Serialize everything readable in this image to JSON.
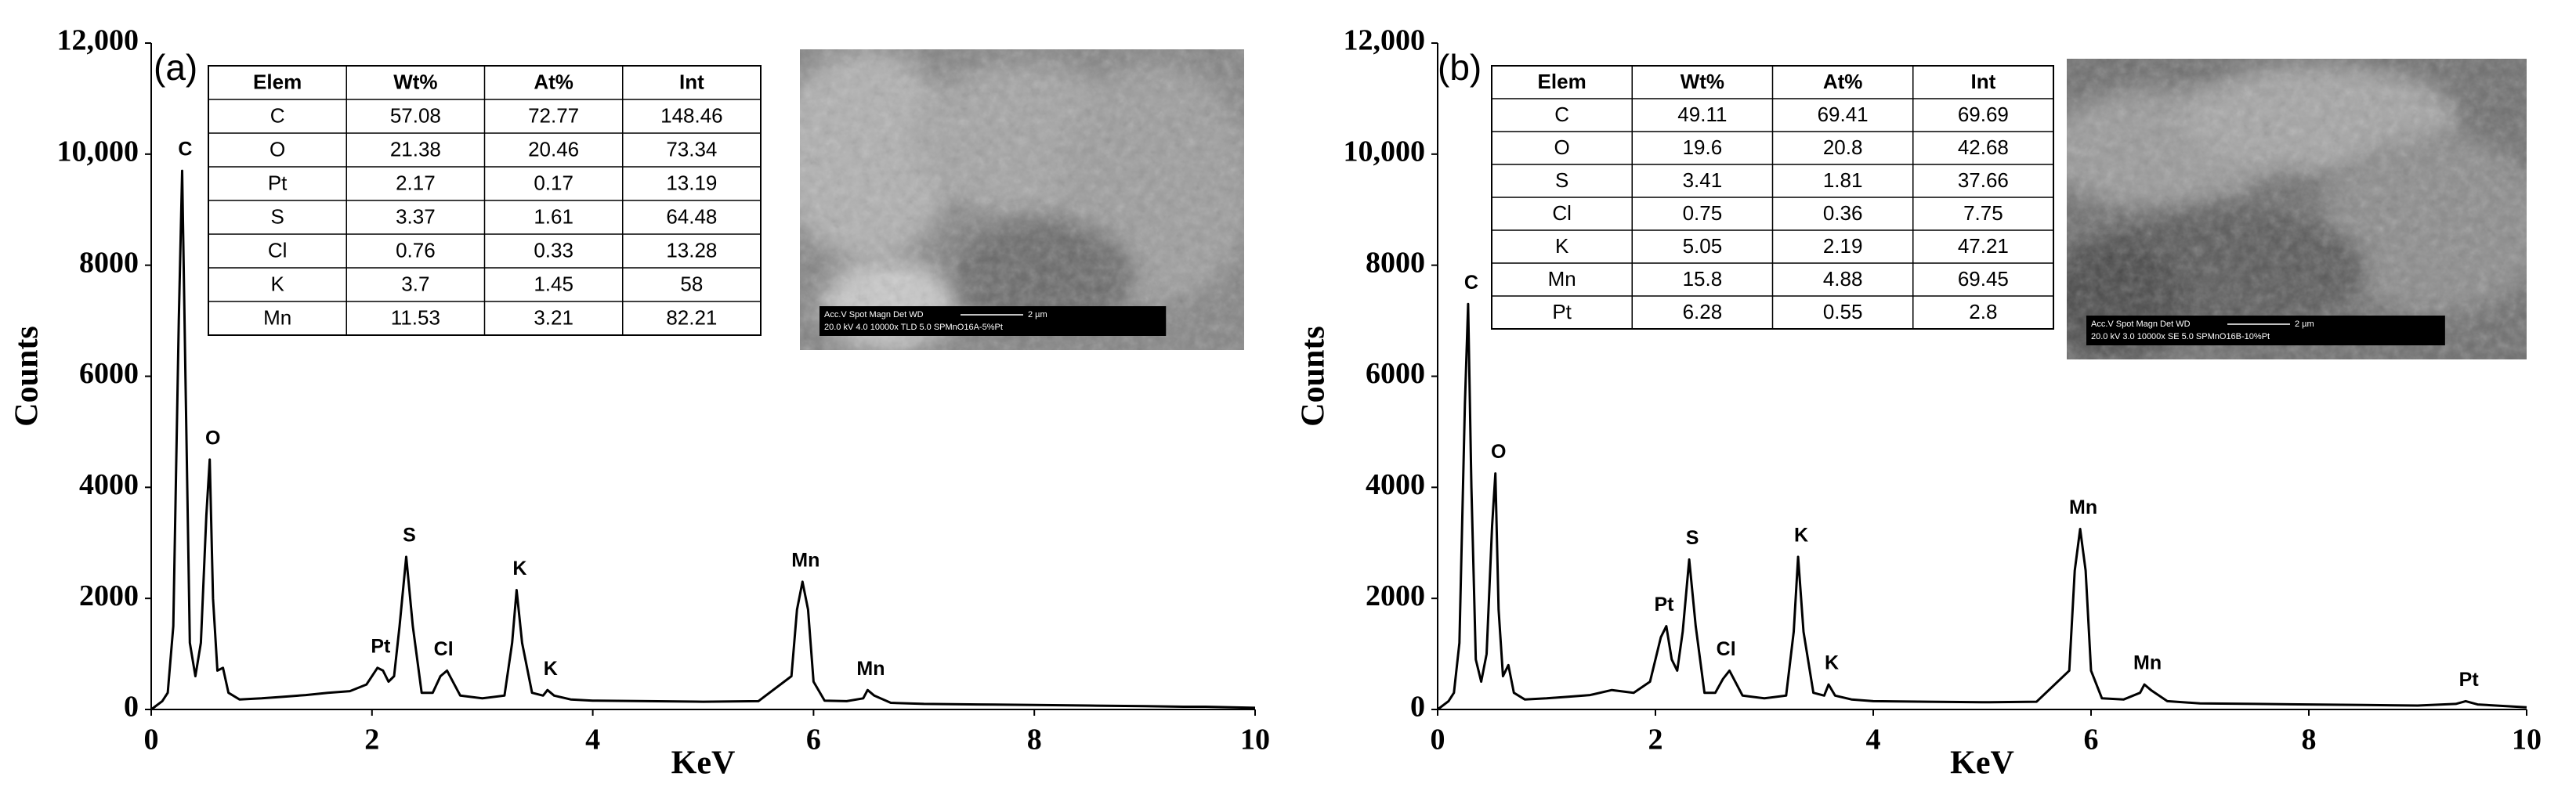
{
  "chart_data": [
    {
      "type": "line",
      "panel_label": "(a)",
      "x_label": "KeV",
      "y_label": "Counts",
      "color": "#000000",
      "xlim": [
        0,
        10
      ],
      "xticks": [
        0,
        2,
        4,
        6,
        8,
        10
      ],
      "ylim": [
        0,
        12000
      ],
      "yticks": [
        {
          "value": 12000,
          "label": "12,000"
        },
        {
          "value": 10000,
          "label": "10,000"
        },
        8000,
        6000,
        4000,
        2000,
        0
      ],
      "x": [
        0,
        0.1,
        0.15,
        0.2,
        0.25,
        0.28,
        0.31,
        0.35,
        0.4,
        0.45,
        0.5,
        0.53,
        0.56,
        0.6,
        0.65,
        0.7,
        0.8,
        1.0,
        1.2,
        1.4,
        1.6,
        1.8,
        1.95,
        2.05,
        2.1,
        2.15,
        2.2,
        2.25,
        2.31,
        2.37,
        2.45,
        2.55,
        2.62,
        2.68,
        2.8,
        3.0,
        3.2,
        3.27,
        3.31,
        3.36,
        3.45,
        3.55,
        3.59,
        3.65,
        3.8,
        4.0,
        4.5,
        5.0,
        5.5,
        5.8,
        5.85,
        5.9,
        5.95,
        6.0,
        6.1,
        6.3,
        6.45,
        6.49,
        6.55,
        6.7,
        7.0,
        7.5,
        8.0,
        8.5,
        9.0,
        9.35,
        9.44,
        9.55,
        10.0
      ],
      "values": [
        0,
        150,
        300,
        1500,
        7000,
        9700,
        6000,
        1200,
        600,
        1200,
        3500,
        4500,
        2000,
        700,
        750,
        300,
        180,
        200,
        230,
        260,
        300,
        330,
        450,
        750,
        700,
        500,
        600,
        1500,
        2750,
        1500,
        300,
        300,
        600,
        700,
        250,
        200,
        250,
        1200,
        2150,
        1200,
        300,
        250,
        350,
        250,
        180,
        160,
        150,
        140,
        150,
        600,
        1800,
        2300,
        1800,
        500,
        160,
        150,
        200,
        350,
        250,
        120,
        100,
        90,
        80,
        70,
        60,
        50,
        50,
        50,
        30
      ],
      "annotations": [
        {
          "text": "C",
          "x": 0.28,
          "y": 9700
        },
        {
          "text": "O",
          "x": 0.53,
          "y": 4500
        },
        {
          "text": "Pt",
          "x": 2.05,
          "y": 750
        },
        {
          "text": "S",
          "x": 2.31,
          "y": 2750
        },
        {
          "text": "Cl",
          "x": 2.62,
          "y": 700
        },
        {
          "text": "K",
          "x": 3.31,
          "y": 2150
        },
        {
          "text": "K",
          "x": 3.59,
          "y": 350
        },
        {
          "text": "Mn",
          "x": 5.9,
          "y": 2300
        },
        {
          "text": "Mn",
          "x": 6.49,
          "y": 350
        }
      ],
      "table": {
        "header": [
          "Elem",
          "Wt%",
          "At%",
          "Int"
        ],
        "rows": [
          [
            "C",
            "57.08",
            "72.77",
            "148.46"
          ],
          [
            "O",
            "21.38",
            "20.46",
            "73.34"
          ],
          [
            "Pt",
            "2.17",
            "0.17",
            "13.19"
          ],
          [
            "S",
            "3.37",
            "1.61",
            "64.48"
          ],
          [
            "Cl",
            "0.76",
            "0.33",
            "13.28"
          ],
          [
            "K",
            "3.7",
            "1.45",
            "58"
          ],
          [
            "Mn",
            "11.53",
            "3.21",
            "82.21"
          ]
        ]
      },
      "image_caption": [
        "Acc.V  Spot Magn   Det  WD",
        "2 µm",
        "20.0 kV 4.0  10000x  TLD 5.0  SPMnO16A-5%Pt"
      ]
    },
    {
      "type": "line",
      "panel_label": "(b)",
      "x_label": "KeV",
      "y_label": "Counts",
      "color": "#000000",
      "xlim": [
        0,
        10
      ],
      "xticks": [
        0,
        2,
        4,
        6,
        8,
        10
      ],
      "ylim": [
        0,
        12000
      ],
      "yticks": [
        {
          "value": 12000,
          "label": "12,000"
        },
        {
          "value": 10000,
          "label": "10,000"
        },
        8000,
        6000,
        4000,
        2000,
        0
      ],
      "x": [
        0,
        0.1,
        0.15,
        0.2,
        0.25,
        0.28,
        0.31,
        0.35,
        0.4,
        0.45,
        0.5,
        0.53,
        0.56,
        0.6,
        0.65,
        0.7,
        0.8,
        1.0,
        1.2,
        1.4,
        1.6,
        1.8,
        1.95,
        2.05,
        2.1,
        2.15,
        2.2,
        2.25,
        2.31,
        2.37,
        2.45,
        2.55,
        2.62,
        2.68,
        2.8,
        3.0,
        3.2,
        3.27,
        3.31,
        3.36,
        3.45,
        3.55,
        3.59,
        3.65,
        3.8,
        4.0,
        4.5,
        5.0,
        5.5,
        5.8,
        5.85,
        5.9,
        5.95,
        6.0,
        6.1,
        6.3,
        6.45,
        6.49,
        6.55,
        6.7,
        7.0,
        7.5,
        8.0,
        8.5,
        9.0,
        9.35,
        9.44,
        9.55,
        10.0
      ],
      "values": [
        0,
        150,
        300,
        1200,
        5500,
        7300,
        4000,
        900,
        500,
        1000,
        3300,
        4250,
        1800,
        600,
        800,
        300,
        180,
        200,
        230,
        260,
        350,
        300,
        500,
        1300,
        1500,
        900,
        700,
        1400,
        2700,
        1500,
        300,
        300,
        550,
        700,
        250,
        200,
        250,
        1400,
        2750,
        1400,
        300,
        250,
        450,
        250,
        180,
        150,
        140,
        130,
        140,
        700,
        2500,
        3250,
        2500,
        700,
        200,
        180,
        300,
        450,
        350,
        150,
        110,
        100,
        90,
        80,
        70,
        100,
        150,
        90,
        40
      ],
      "annotations": [
        {
          "text": "C",
          "x": 0.28,
          "y": 7300
        },
        {
          "text": "O",
          "x": 0.53,
          "y": 4250
        },
        {
          "text": "Pt",
          "x": 2.05,
          "y": 1500
        },
        {
          "text": "S",
          "x": 2.31,
          "y": 2700
        },
        {
          "text": "Cl",
          "x": 2.62,
          "y": 700
        },
        {
          "text": "K",
          "x": 3.31,
          "y": 2750
        },
        {
          "text": "K",
          "x": 3.59,
          "y": 450
        },
        {
          "text": "Mn",
          "x": 5.9,
          "y": 3250
        },
        {
          "text": "Mn",
          "x": 6.49,
          "y": 450
        },
        {
          "text": "Pt",
          "x": 9.44,
          "y": 150
        }
      ],
      "table": {
        "header": [
          "Elem",
          "Wt%",
          "At%",
          "Int"
        ],
        "rows": [
          [
            "C",
            "49.11",
            "69.41",
            "69.69"
          ],
          [
            "O",
            "19.6",
            "20.8",
            "42.68"
          ],
          [
            "S",
            "3.41",
            "1.81",
            "37.66"
          ],
          [
            "Cl",
            "0.75",
            "0.36",
            "7.75"
          ],
          [
            "K",
            "5.05",
            "2.19",
            "47.21"
          ],
          [
            "Mn",
            "15.8",
            "4.88",
            "69.45"
          ],
          [
            "Pt",
            "6.28",
            "0.55",
            "2.8"
          ]
        ]
      },
      "image_caption": [
        "Acc.V  Spot Magn  Det  WD",
        "2 µm",
        "20.0 kV 3.0  10000x  SE  5.0  SPMnO16B-10%Pt"
      ]
    }
  ]
}
